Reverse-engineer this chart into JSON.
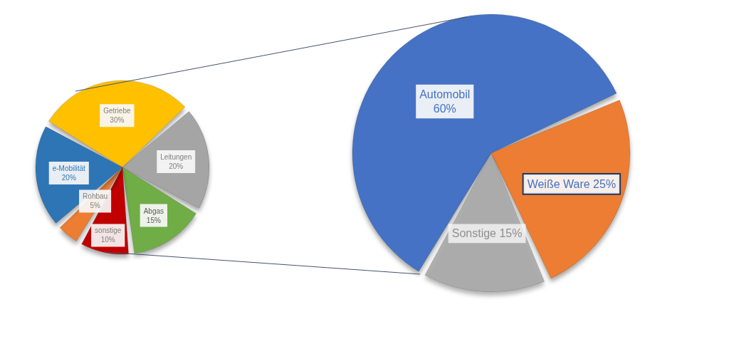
{
  "chart_data": [
    {
      "type": "pie",
      "categories": [
        "Getriebe",
        "Leitungen",
        "Abgas",
        "sonstige",
        "Rohbau",
        "e-Mobilität"
      ],
      "values": [
        30,
        20,
        15,
        10,
        5,
        20
      ],
      "colors": [
        "#ffc000",
        "#a5a5a5",
        "#70ad47",
        "#c00000",
        "#ed7d31",
        "#2e75b6"
      ],
      "value_labels": [
        "30%",
        "20%",
        "15%",
        "10%",
        "5%",
        "20%"
      ]
    },
    {
      "type": "pie",
      "categories": [
        "Automobil",
        "Weiße Ware",
        "Sonstige"
      ],
      "values": [
        60,
        25,
        15
      ],
      "colors": [
        "#4472c4",
        "#ed7d31",
        "#a5a5a5"
      ],
      "value_labels": [
        "60%",
        "25%",
        "15%"
      ]
    }
  ]
}
